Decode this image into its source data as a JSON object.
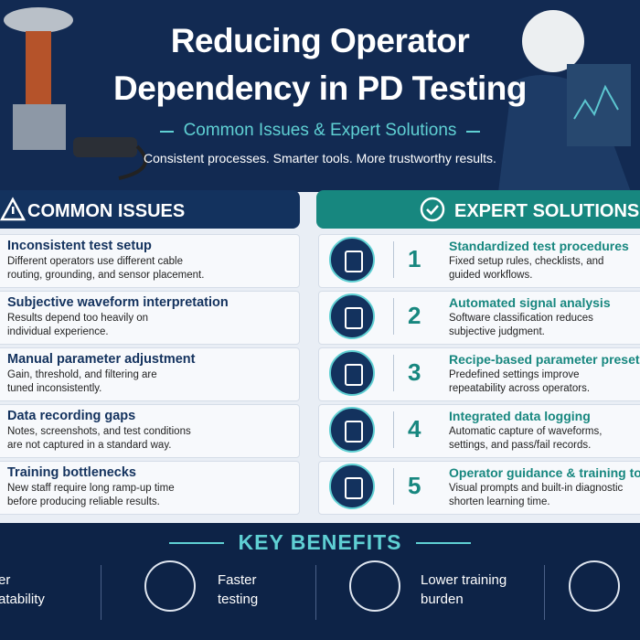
{
  "header": {
    "title_lines": [
      "Reducing Operator",
      "Dependency in PD Testing"
    ],
    "subtitle": "Common Issues & Expert Solutions",
    "tagline": "Consistent processes. Smarter tools. More trustworthy results."
  },
  "issues": {
    "heading": "COMMON ISSUES",
    "items": [
      {
        "title": "Inconsistent test setup",
        "desc_lines": [
          "Different operators use different cable",
          "routing, grounding, and sensor placement."
        ]
      },
      {
        "title": "Subjective waveform interpretation",
        "desc_lines": [
          "Results depend too heavily on",
          "individual experience."
        ]
      },
      {
        "title": "Manual parameter adjustment",
        "desc_lines": [
          "Gain, threshold, and filtering are",
          "tuned inconsistently."
        ]
      },
      {
        "title": "Data recording gaps",
        "desc_lines": [
          "Notes, screenshots, and test conditions",
          "are not captured in a standard way."
        ]
      },
      {
        "title": "Training bottlenecks",
        "desc_lines": [
          "New staff require long ramp-up time",
          "before producing reliable results."
        ]
      }
    ]
  },
  "solutions": {
    "heading": "EXPERT SOLUTIONS",
    "items": [
      {
        "number": "1",
        "title": "Standardized test procedures",
        "desc_lines": [
          "Fixed setup rules, checklists, and",
          "guided workflows."
        ]
      },
      {
        "number": "2",
        "title": "Automated signal analysis",
        "desc_lines": [
          "Software classification reduces",
          "subjective judgment."
        ]
      },
      {
        "number": "3",
        "title": "Recipe-based parameter presets",
        "desc_lines": [
          "Predefined settings improve",
          "repeatability across operators."
        ]
      },
      {
        "number": "4",
        "title": "Integrated data logging",
        "desc_lines": [
          "Automatic capture of waveforms,",
          "settings, and pass/fail records."
        ]
      },
      {
        "number": "5",
        "title": "Operator guidance & training to",
        "desc_lines": [
          "Visual prompts and built-in diagnostic",
          "shorten learning time."
        ]
      }
    ]
  },
  "benefits": {
    "heading": "KEY BENEFITS",
    "items": [
      {
        "lines": [
          "er",
          "atability"
        ]
      },
      {
        "lines": [
          "Faster",
          "testing"
        ]
      },
      {
        "lines": [
          "Lower training",
          "burden"
        ]
      }
    ]
  }
}
